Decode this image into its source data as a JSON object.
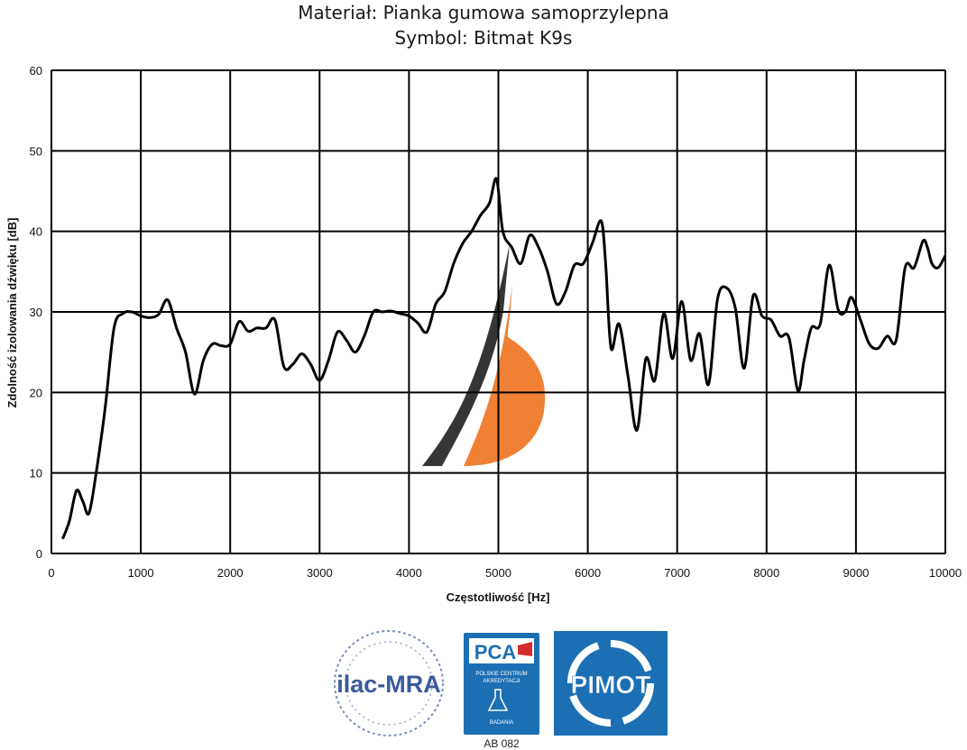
{
  "header": {
    "title": "Materiał: Pianka gumowa samoprzylepna",
    "subtitle": "Symbol: Bitmat K9s"
  },
  "chart_data": {
    "type": "line",
    "xlabel": "Częstotliwość [Hz]",
    "ylabel": "Zdolność izolowania dźwięku [dB]",
    "xlim": [
      0,
      10000
    ],
    "ylim": [
      0,
      60
    ],
    "xticks": [
      0,
      1000,
      2000,
      3000,
      4000,
      5000,
      6000,
      7000,
      8000,
      9000,
      10000
    ],
    "yticks": [
      0,
      10,
      20,
      30,
      40,
      50,
      60
    ],
    "grid": true,
    "line_color": "#000000",
    "series": [
      {
        "x": [
          125,
          200,
          280,
          350,
          420,
          500,
          600,
          700,
          800,
          900,
          1000,
          1100,
          1200,
          1300,
          1400,
          1500,
          1600,
          1700,
          1800,
          1900,
          2000,
          2100,
          2200,
          2300,
          2400,
          2500,
          2600,
          2700,
          2800,
          2900,
          3000,
          3100,
          3200,
          3300,
          3400,
          3500,
          3600,
          3700,
          3800,
          3900,
          4000,
          4100,
          4200,
          4300,
          4400,
          4500,
          4600,
          4700,
          4800,
          4900,
          4980,
          5050,
          5150,
          5250,
          5350,
          5450,
          5550,
          5650,
          5750,
          5850,
          5950,
          6050,
          6150,
          6200,
          6260,
          6350,
          6450,
          6550,
          6650,
          6750,
          6850,
          6950,
          7050,
          7150,
          7250,
          7350,
          7450,
          7550,
          7650,
          7750,
          7850,
          7950,
          8050,
          8150,
          8250,
          8350,
          8420,
          8500,
          8600,
          8700,
          8800,
          8880,
          8950,
          9050,
          9150,
          9250,
          9350,
          9450,
          9550,
          9650,
          9750,
          9800,
          9850,
          9920,
          10000
        ],
        "y": [
          1.8,
          4,
          7.8,
          6.5,
          5,
          10,
          18,
          28,
          29.8,
          30,
          29.5,
          29.3,
          29.7,
          31.5,
          28,
          25,
          19.8,
          24,
          26,
          25.8,
          26,
          28.8,
          27.6,
          28,
          28,
          29,
          23.2,
          23.5,
          24.8,
          23.5,
          21.5,
          24,
          27.5,
          26.5,
          25,
          27,
          30,
          30,
          30.1,
          29.8,
          29.5,
          28.6,
          27.5,
          31,
          32.5,
          36,
          38.5,
          40,
          42,
          43.5,
          46.5,
          40,
          38,
          36,
          39.5,
          38,
          35,
          31,
          32.5,
          35.8,
          36,
          38.5,
          41.3,
          36,
          25.5,
          28.5,
          22,
          15.3,
          24.2,
          21.5,
          29.8,
          24.2,
          31.3,
          24,
          27.3,
          21,
          31.5,
          33,
          30.5,
          23,
          32,
          29.5,
          29,
          27,
          26.8,
          20.2,
          24,
          28,
          28.5,
          35.8,
          30.3,
          30,
          31.8,
          29,
          26,
          25.5,
          27,
          26.5,
          35.5,
          35.5,
          38.8,
          38,
          36,
          35.5,
          37
        ]
      }
    ]
  },
  "logos": {
    "ilac": "ilac-MRA",
    "pca": "PCA",
    "pca_line1": "POLSKIE CENTRUM",
    "pca_line2": "AKREDYTACJI",
    "pca_badania": "BADANIA",
    "pca_code": "AB 082",
    "pimot": "PIMOT"
  },
  "colors": {
    "watermark_orange": "#f07a2a",
    "watermark_dark": "#2b2b2b",
    "logo_blue": "#1d6fb3",
    "ilac_blue": "#3a5a9c"
  }
}
